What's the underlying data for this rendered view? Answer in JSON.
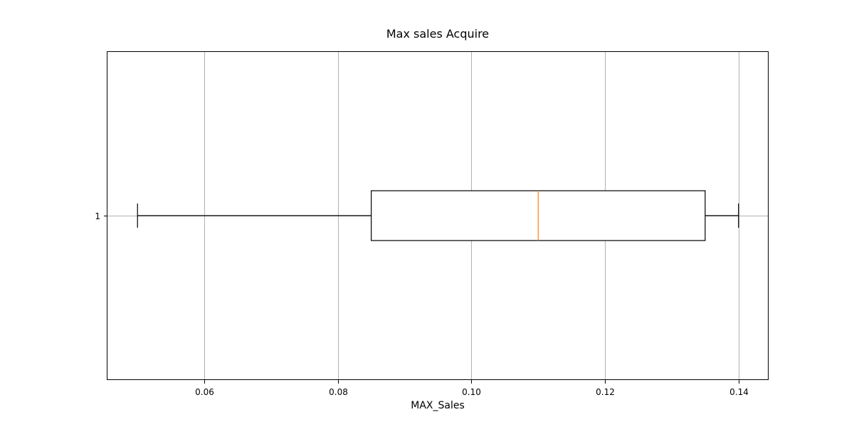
{
  "chart_data": {
    "type": "boxplot",
    "orientation": "horizontal",
    "title": "Max sales Acquire",
    "xlabel": "MAX_Sales",
    "ylabel": "",
    "xlim": [
      0.0455,
      0.1445
    ],
    "x_ticks": [
      0.06,
      0.08,
      0.1,
      0.12,
      0.14
    ],
    "x_tick_labels": [
      "0.06",
      "0.08",
      "0.10",
      "0.12",
      "0.14"
    ],
    "y_tick_labels": [
      "1"
    ],
    "grid": true,
    "boxes": [
      {
        "label": "1",
        "whisker_low": 0.05,
        "q1": 0.085,
        "median": 0.11,
        "q3": 0.135,
        "whisker_high": 0.14
      }
    ],
    "colors": {
      "box": "#000000",
      "median": "#ff7f0e",
      "grid": "#b0b0b0",
      "frame": "#000000"
    }
  }
}
